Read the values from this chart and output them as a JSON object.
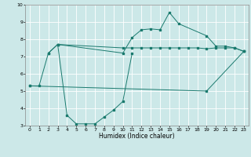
{
  "xlabel": "Humidex (Indice chaleur)",
  "bg_color": "#cce8e8",
  "grid_color": "#ffffff",
  "line_color": "#1a7a6e",
  "xlim": [
    -0.5,
    23.5
  ],
  "ylim": [
    3,
    10
  ],
  "xticks": [
    0,
    1,
    2,
    3,
    4,
    5,
    6,
    7,
    8,
    9,
    10,
    11,
    12,
    13,
    14,
    15,
    16,
    17,
    18,
    19,
    20,
    21,
    22,
    23
  ],
  "yticks": [
    3,
    4,
    5,
    6,
    7,
    8,
    9,
    10
  ],
  "line1_x": [
    0,
    1,
    2,
    3,
    10,
    11,
    12,
    13,
    14,
    15,
    16,
    19,
    20,
    21,
    22,
    23
  ],
  "line1_y": [
    5.3,
    5.3,
    7.2,
    7.7,
    7.2,
    8.1,
    8.55,
    8.6,
    8.55,
    9.55,
    8.9,
    8.2,
    7.6,
    7.6,
    7.5,
    7.3
  ],
  "line2_x": [
    2,
    3,
    4,
    5,
    6,
    7,
    8,
    9,
    10,
    11
  ],
  "line2_y": [
    7.2,
    7.7,
    3.6,
    3.1,
    3.1,
    3.1,
    3.5,
    3.9,
    4.4,
    7.2
  ],
  "line3_x": [
    3,
    10,
    11,
    12,
    13,
    14,
    15,
    16,
    17,
    18,
    19,
    20,
    21,
    22,
    23
  ],
  "line3_y": [
    7.7,
    7.5,
    7.5,
    7.5,
    7.5,
    7.5,
    7.5,
    7.5,
    7.5,
    7.5,
    7.45,
    7.5,
    7.5,
    7.5,
    7.3
  ],
  "line4_x": [
    0,
    19,
    23
  ],
  "line4_y": [
    5.3,
    5.0,
    7.3
  ]
}
